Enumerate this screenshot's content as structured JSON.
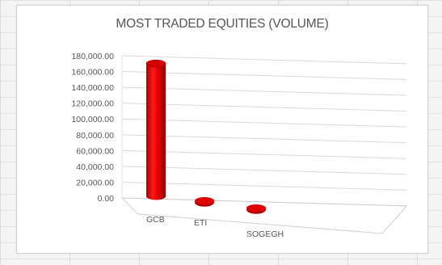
{
  "chart_data": {
    "type": "bar",
    "title": "MOST TRADED EQUITIES (VOLUME)",
    "categories": [
      "GCB",
      "ETI",
      "SOGEGH"
    ],
    "values": [
      168000,
      2500,
      1500
    ],
    "ylim": [
      0,
      180000
    ],
    "yticks": [
      "0.00",
      "20,000.00",
      "40,000.00",
      "60,000.00",
      "80,000.00",
      "100,000.00",
      "120,000.00",
      "140,000.00",
      "160,000.00",
      "180,000.00"
    ],
    "grid": true,
    "legend": "none",
    "bar_color": "#e00000",
    "style": "3d-cylinder"
  }
}
